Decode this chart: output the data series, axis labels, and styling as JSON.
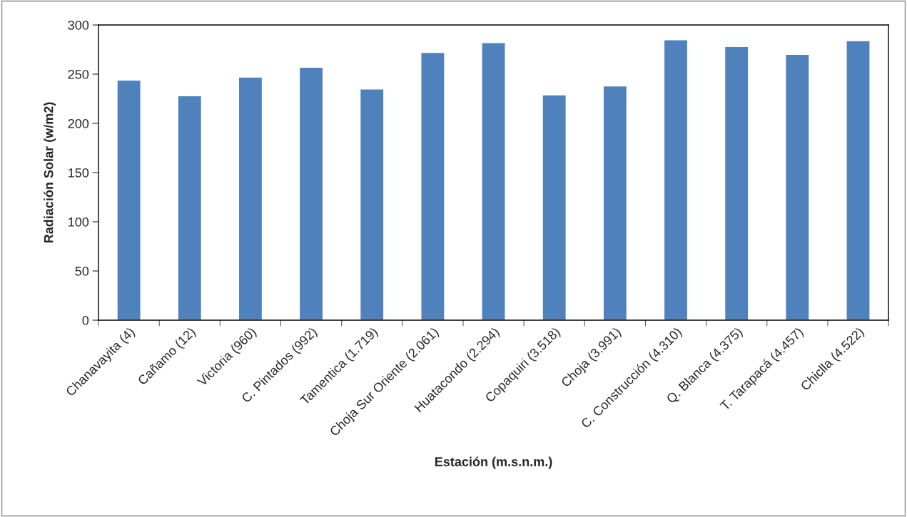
{
  "chart_data": {
    "type": "bar",
    "categories": [
      "Chanavayita (4)",
      "Cañamo (12)",
      "Victoria (960)",
      "C. Pintados (992)",
      "Tamentica (1.719)",
      "Choja Sur Oriente (2.061)",
      "Huatacondo (2.294)",
      "Copaquiri (3.518)",
      "Choja (3.991)",
      "C. Construcción (4.310)",
      "Q. Blanca (4.375)",
      "T. Tarapacá (4.457)",
      "Chiclla (4.522)"
    ],
    "values": [
      244,
      228,
      247,
      257,
      235,
      272,
      282,
      229,
      238,
      285,
      278,
      270,
      284
    ],
    "color": "#4f81bd",
    "xlabel": "Estación (m.s.n.m.)",
    "ylabel": "Radiación Solar (w/m2)",
    "ylim": [
      0,
      300
    ],
    "yticks": [
      0,
      50,
      100,
      150,
      200,
      250,
      300
    ],
    "grid": false,
    "legend": false
  }
}
